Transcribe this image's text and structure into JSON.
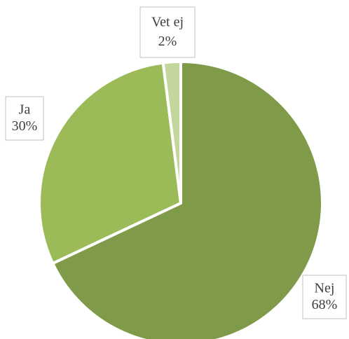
{
  "chart_data": {
    "type": "pie",
    "categories": [
      "Nej",
      "Ja",
      "Vet ej"
    ],
    "values": [
      68,
      30,
      2
    ],
    "value_labels": [
      "68%",
      "30%",
      "2%"
    ],
    "colors": [
      "#7f9a48",
      "#9bbb59",
      "#c3d69b"
    ]
  }
}
